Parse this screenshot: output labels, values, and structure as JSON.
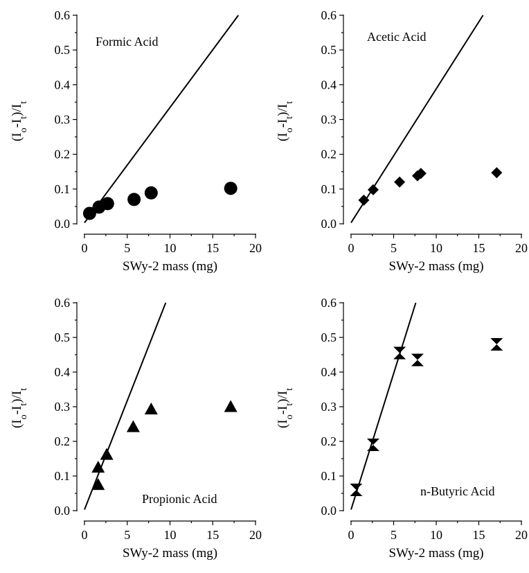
{
  "chart_data": [
    {
      "type": "scatter",
      "label": "Formic Acid",
      "marker": "circle",
      "xlabel": "SWy-2 mass (mg)",
      "ylabel": "(Io-It)/It",
      "ylabel_parts": {
        "open": "(I",
        "sub1": "o",
        "mid": "-I",
        "sub2": "t",
        "close": ")/I",
        "sub3": "t"
      },
      "xlim": [
        0,
        20
      ],
      "ylim": [
        0,
        0.6
      ],
      "x_ticks": [
        "0",
        "5",
        "10",
        "15",
        "20"
      ],
      "y_ticks": [
        "0.0",
        "0.1",
        "0.2",
        "0.3",
        "0.4",
        "0.5",
        "0.6"
      ],
      "points": [
        [
          0.6,
          0.03
        ],
        [
          1.7,
          0.048
        ],
        [
          2.7,
          0.058
        ],
        [
          5.8,
          0.07
        ],
        [
          7.8,
          0.089
        ],
        [
          17.1,
          0.102
        ]
      ],
      "fit_line": [
        [
          0,
          0.003
        ],
        [
          18,
          0.6
        ]
      ]
    },
    {
      "type": "scatter",
      "label": "Acetic Acid",
      "marker": "diamond",
      "xlabel": "SWy-2 mass (mg)",
      "ylabel": "(Io-It)/It",
      "ylabel_parts": {
        "open": "(I",
        "sub1": "o",
        "mid": "-I",
        "sub2": "t",
        "close": ")/I",
        "sub3": "t"
      },
      "xlim": [
        0,
        20
      ],
      "ylim": [
        0,
        0.6
      ],
      "x_ticks": [
        "0",
        "5",
        "10",
        "15",
        "20"
      ],
      "y_ticks": [
        "0.0",
        "0.1",
        "0.2",
        "0.3",
        "0.4",
        "0.5",
        "0.6"
      ],
      "points": [
        [
          1.5,
          0.068
        ],
        [
          2.6,
          0.098
        ],
        [
          5.7,
          0.12
        ],
        [
          7.8,
          0.138
        ],
        [
          8.2,
          0.145
        ],
        [
          17.1,
          0.147
        ]
      ],
      "fit_line": [
        [
          0,
          0.003
        ],
        [
          15.5,
          0.6
        ]
      ]
    },
    {
      "type": "scatter",
      "label": "Propionic Acid",
      "marker": "triangle",
      "xlabel": "SWy-2 mass (mg)",
      "ylabel": "(Io-It)/It",
      "ylabel_parts": {
        "open": "(I",
        "sub1": "o",
        "mid": "-I",
        "sub2": "t",
        "close": ")/I",
        "sub3": "t"
      },
      "xlim": [
        0,
        20
      ],
      "ylim": [
        0,
        0.6
      ],
      "x_ticks": [
        "0",
        "5",
        "10",
        "15",
        "20"
      ],
      "y_ticks": [
        "0.0",
        "0.1",
        "0.2",
        "0.3",
        "0.4",
        "0.5",
        "0.6"
      ],
      "points": [
        [
          1.6,
          0.075
        ],
        [
          1.6,
          0.125
        ],
        [
          2.6,
          0.162
        ],
        [
          5.7,
          0.242
        ],
        [
          7.8,
          0.293
        ],
        [
          17.1,
          0.3
        ]
      ],
      "fit_line": [
        [
          0,
          0.003
        ],
        [
          9.5,
          0.6
        ]
      ]
    },
    {
      "type": "scatter",
      "label": "n-Butyric Acid",
      "marker": "hourglass",
      "xlabel": "SWy-2 mass (mg)",
      "ylabel": "(Io-It)/It",
      "ylabel_parts": {
        "open": "(I",
        "sub1": "o",
        "mid": "-I",
        "sub2": "t",
        "close": ")/I",
        "sub3": "t"
      },
      "xlim": [
        0,
        20
      ],
      "ylim": [
        0,
        0.6
      ],
      "x_ticks": [
        "0",
        "5",
        "10",
        "15",
        "20"
      ],
      "y_ticks": [
        "0.0",
        "0.1",
        "0.2",
        "0.3",
        "0.4",
        "0.5",
        "0.6"
      ],
      "points": [
        [
          0.6,
          0.06
        ],
        [
          2.6,
          0.19
        ],
        [
          5.7,
          0.455
        ],
        [
          7.8,
          0.435
        ],
        [
          17.1,
          0.48
        ]
      ],
      "fit_line": [
        [
          0,
          0.003
        ],
        [
          7.6,
          0.6
        ]
      ]
    }
  ]
}
